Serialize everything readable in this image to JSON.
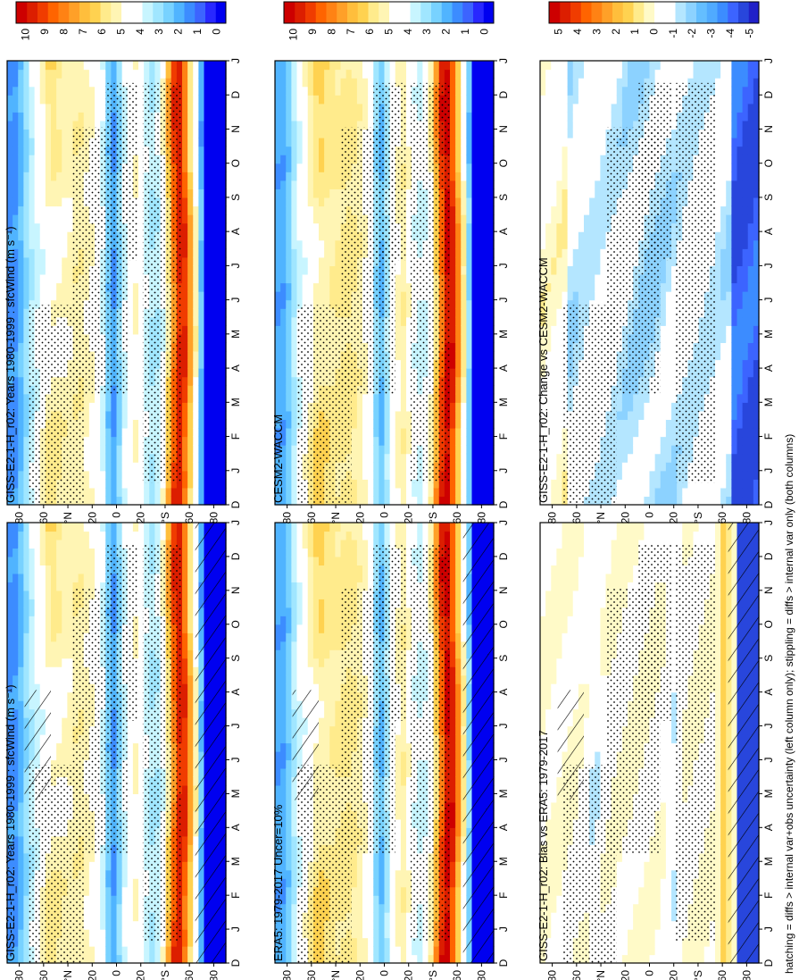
{
  "figure": {
    "footer": "hatching = diffs > internal var+obs uncertainty (left column only); stippling = diffs > internal var only (both columns)"
  },
  "chart_data": [
    {
      "type": "heatmap",
      "id": "p00",
      "title": "GISS-E2-1-H_r02: Years 1980-1999 : sfcWind (m s⁻¹)",
      "month_labels": [
        "D",
        "J",
        "F",
        "M",
        "A",
        "M",
        "J",
        "J",
        "A",
        "S",
        "O",
        "N",
        "D",
        "J"
      ],
      "lat_labels": [
        "80",
        "60",
        "°N",
        "20",
        "0",
        "20",
        "°S",
        "60",
        "80"
      ],
      "colorbar": {
        "levels": [
          "10",
          "9",
          "8",
          "7",
          "6",
          "5",
          "4",
          "3",
          "2",
          "1",
          "0"
        ],
        "vmin": 0,
        "vmax": 10,
        "scale": "abs"
      },
      "hatching": true
    },
    {
      "type": "heatmap",
      "id": "p01",
      "title": "GISS-E2-1-H_r02: Years 1980-1999 : sfcWind (m s⁻¹)",
      "month_labels": [
        "D",
        "J",
        "F",
        "M",
        "A",
        "M",
        "J",
        "J",
        "A",
        "S",
        "O",
        "N",
        "D",
        "J"
      ],
      "lat_labels": [
        "80",
        "60",
        "°N",
        "20",
        "0",
        "20",
        "°S",
        "60",
        "80"
      ],
      "colorbar": {
        "levels": [
          "10",
          "9",
          "8",
          "7",
          "6",
          "5",
          "4",
          "3",
          "2",
          "1",
          "0"
        ],
        "vmin": 0,
        "vmax": 10,
        "scale": "abs"
      },
      "hatching": false
    },
    {
      "type": "heatmap",
      "id": "p10",
      "title": "ERA5: 1979-2017 Uncer=10%",
      "month_labels": [
        "D",
        "J",
        "F",
        "M",
        "A",
        "M",
        "J",
        "J",
        "A",
        "S",
        "O",
        "N",
        "D",
        "J"
      ],
      "lat_labels": [
        "80",
        "60",
        "°N",
        "20",
        "0",
        "20",
        "°S",
        "60",
        "80"
      ],
      "colorbar": {
        "levels": [
          "10",
          "9",
          "8",
          "7",
          "6",
          "5",
          "4",
          "3",
          "2",
          "1",
          "0"
        ],
        "vmin": 0,
        "vmax": 10,
        "scale": "abs"
      },
      "hatching": true
    },
    {
      "type": "heatmap",
      "id": "p11",
      "title": "CESM2-WACCM",
      "month_labels": [
        "D",
        "J",
        "F",
        "M",
        "A",
        "M",
        "J",
        "J",
        "A",
        "S",
        "O",
        "N",
        "D",
        "J"
      ],
      "lat_labels": [
        "80",
        "60",
        "°N",
        "20",
        "0",
        "20",
        "°S",
        "60",
        "80"
      ],
      "colorbar": {
        "levels": [
          "10",
          "9",
          "8",
          "7",
          "6",
          "5",
          "4",
          "3",
          "2",
          "1",
          "0"
        ],
        "vmin": 0,
        "vmax": 10,
        "scale": "abs"
      },
      "hatching": false
    },
    {
      "type": "heatmap",
      "id": "p20",
      "title": "GISS-E2-1-H_r02: Bias vs ERA5: 1979-2017",
      "month_labels": [
        "D",
        "J",
        "F",
        "M",
        "A",
        "M",
        "J",
        "J",
        "A",
        "S",
        "O",
        "N",
        "D",
        "J"
      ],
      "lat_labels": [
        "80",
        "60",
        "°N",
        "20",
        "0",
        "20",
        "°S",
        "60",
        "80"
      ],
      "colorbar": {
        "levels": [
          "5",
          "4",
          "3",
          "2",
          "1",
          "0",
          "-1",
          "-2",
          "-3",
          "-4",
          "-5"
        ],
        "vmin": -5,
        "vmax": 5,
        "scale": "diff"
      },
      "hatching": true
    },
    {
      "type": "heatmap",
      "id": "p21",
      "title": "GISS-E2-1-H_r02: Change vs CESM2-WACCM",
      "month_labels": [
        "D",
        "J",
        "F",
        "M",
        "A",
        "M",
        "J",
        "J",
        "A",
        "S",
        "O",
        "N",
        "D",
        "J"
      ],
      "lat_labels": [
        "80",
        "60",
        "°N",
        "20",
        "0",
        "20",
        "°S",
        "60",
        "80"
      ],
      "colorbar": {
        "levels": [
          "5",
          "4",
          "3",
          "2",
          "1",
          "0",
          "-1",
          "-2",
          "-3",
          "-4",
          "-5"
        ],
        "vmin": -5,
        "vmax": 5,
        "scale": "diff"
      },
      "hatching": false
    }
  ]
}
